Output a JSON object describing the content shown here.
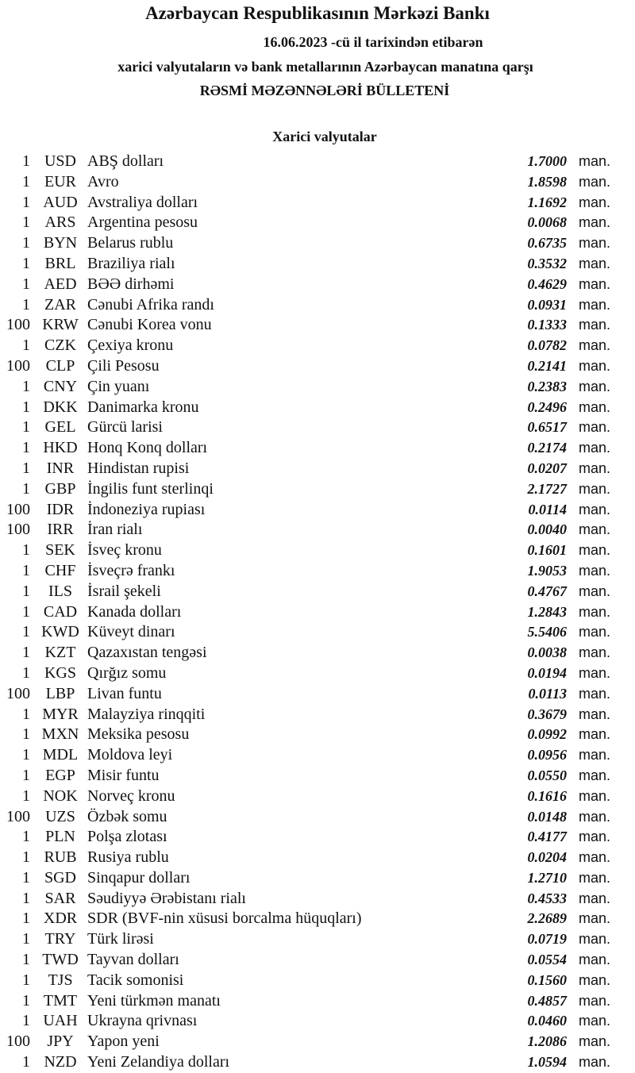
{
  "header": {
    "title": "Azərbaycan Respublikasının Mərkəzi Bankı",
    "date_line": "16.06.2023  -cü il tarixindən etibarən",
    "subtitle": "xarici valyutaların və bank metallarının Azərbaycan manatına qarşı",
    "bulletin": "RƏSMİ MƏZƏNNƏLƏRİ BÜLLETENİ",
    "section": "Xarici valyutalar"
  },
  "unit": "man.",
  "rates": [
    {
      "nominal": "1",
      "code": "USD",
      "name": "ABŞ dolları",
      "rate": "1.7000"
    },
    {
      "nominal": "1",
      "code": "EUR",
      "name": "Avro",
      "rate": "1.8598"
    },
    {
      "nominal": "1",
      "code": "AUD",
      "name": "Avstraliya dolları",
      "rate": "1.1692"
    },
    {
      "nominal": "1",
      "code": "ARS",
      "name": "Argentina pesosu",
      "rate": "0.0068"
    },
    {
      "nominal": "1",
      "code": "BYN",
      "name": "Belarus rublu",
      "rate": "0.6735"
    },
    {
      "nominal": "1",
      "code": "BRL",
      "name": "Braziliya rialı",
      "rate": "0.3532"
    },
    {
      "nominal": "1",
      "code": "AED",
      "name": "BƏƏ dirhəmi",
      "rate": "0.4629"
    },
    {
      "nominal": "1",
      "code": "ZAR",
      "name": "Cənubi Afrika randı",
      "rate": "0.0931"
    },
    {
      "nominal": "100",
      "code": "KRW",
      "name": "Cənubi Korea vonu",
      "rate": "0.1333"
    },
    {
      "nominal": "1",
      "code": "CZK",
      "name": "Çexiya kronu",
      "rate": "0.0782"
    },
    {
      "nominal": "100",
      "code": "CLP",
      "name": "Çili Pesosu",
      "rate": "0.2141"
    },
    {
      "nominal": "1",
      "code": "CNY",
      "name": "Çin yuanı",
      "rate": "0.2383"
    },
    {
      "nominal": "1",
      "code": "DKK",
      "name": "Danimarka kronu",
      "rate": "0.2496"
    },
    {
      "nominal": "1",
      "code": "GEL",
      "name": "Gürcü larisi",
      "rate": "0.6517"
    },
    {
      "nominal": "1",
      "code": "HKD",
      "name": "Honq Konq dolları",
      "rate": "0.2174"
    },
    {
      "nominal": "1",
      "code": "INR",
      "name": "Hindistan rupisi",
      "rate": "0.0207"
    },
    {
      "nominal": "1",
      "code": "GBP",
      "name": "İngilis funt sterlinqi",
      "rate": "2.1727"
    },
    {
      "nominal": "100",
      "code": "IDR",
      "name": "İndoneziya rupiası",
      "rate": "0.0114"
    },
    {
      "nominal": "100",
      "code": "IRR",
      "name": "İran rialı",
      "rate": "0.0040"
    },
    {
      "nominal": "1",
      "code": "SEK",
      "name": "İsveç kronu",
      "rate": "0.1601"
    },
    {
      "nominal": "1",
      "code": "CHF",
      "name": "İsveçrə frankı",
      "rate": "1.9053"
    },
    {
      "nominal": "1",
      "code": "ILS",
      "name": "İsrail şekeli",
      "rate": "0.4767"
    },
    {
      "nominal": "1",
      "code": "CAD",
      "name": "Kanada dolları",
      "rate": "1.2843"
    },
    {
      "nominal": "1",
      "code": "KWD",
      "name": "Küveyt dinarı",
      "rate": "5.5406"
    },
    {
      "nominal": "1",
      "code": "KZT",
      "name": "Qazaxıstan tengəsi",
      "rate": "0.0038"
    },
    {
      "nominal": "1",
      "code": "KGS",
      "name": "Qırğız somu",
      "rate": "0.0194"
    },
    {
      "nominal": "100",
      "code": "LBP",
      "name": "Livan funtu",
      "rate": "0.0113"
    },
    {
      "nominal": "1",
      "code": "MYR",
      "name": "Malayziya rinqqiti",
      "rate": "0.3679"
    },
    {
      "nominal": "1",
      "code": "MXN",
      "name": "Meksika pesosu",
      "rate": "0.0992"
    },
    {
      "nominal": "1",
      "code": "MDL",
      "name": "Moldova leyi",
      "rate": "0.0956"
    },
    {
      "nominal": "1",
      "code": "EGP",
      "name": "Misir funtu",
      "rate": "0.0550"
    },
    {
      "nominal": "1",
      "code": "NOK",
      "name": "Norveç kronu",
      "rate": "0.1616"
    },
    {
      "nominal": "100",
      "code": "UZS",
      "name": "Özbək somu",
      "rate": "0.0148"
    },
    {
      "nominal": "1",
      "code": "PLN",
      "name": "Polşa zlotası",
      "rate": "0.4177"
    },
    {
      "nominal": "1",
      "code": "RUB",
      "name": "Rusiya rublu",
      "rate": "0.0204"
    },
    {
      "nominal": "1",
      "code": "SGD",
      "name": "Sinqapur dolları",
      "rate": "1.2710"
    },
    {
      "nominal": "1",
      "code": "SAR",
      "name": "Səudiyyə Ərəbistanı rialı",
      "rate": "0.4533"
    },
    {
      "nominal": "1",
      "code": "XDR",
      "name": "SDR (BVF-nin xüsusi borcalma hüquqları)",
      "rate": "2.2689"
    },
    {
      "nominal": "1",
      "code": "TRY",
      "name": "Türk lirəsi",
      "rate": "0.0719"
    },
    {
      "nominal": "1",
      "code": "TWD",
      "name": "Tayvan dolları",
      "rate": "0.0554"
    },
    {
      "nominal": "1",
      "code": "TJS",
      "name": "Tacik somonisi",
      "rate": "0.1560"
    },
    {
      "nominal": "1",
      "code": "TMT",
      "name": "Yeni türkmən manatı",
      "rate": "0.4857"
    },
    {
      "nominal": "1",
      "code": "UAH",
      "name": "Ukrayna qrivnası",
      "rate": "0.0460"
    },
    {
      "nominal": "100",
      "code": "JPY",
      "name": "Yapon yeni",
      "rate": "1.2086"
    },
    {
      "nominal": "1",
      "code": "NZD",
      "name": "Yeni Zelandiya dolları",
      "rate": "1.0594"
    }
  ]
}
